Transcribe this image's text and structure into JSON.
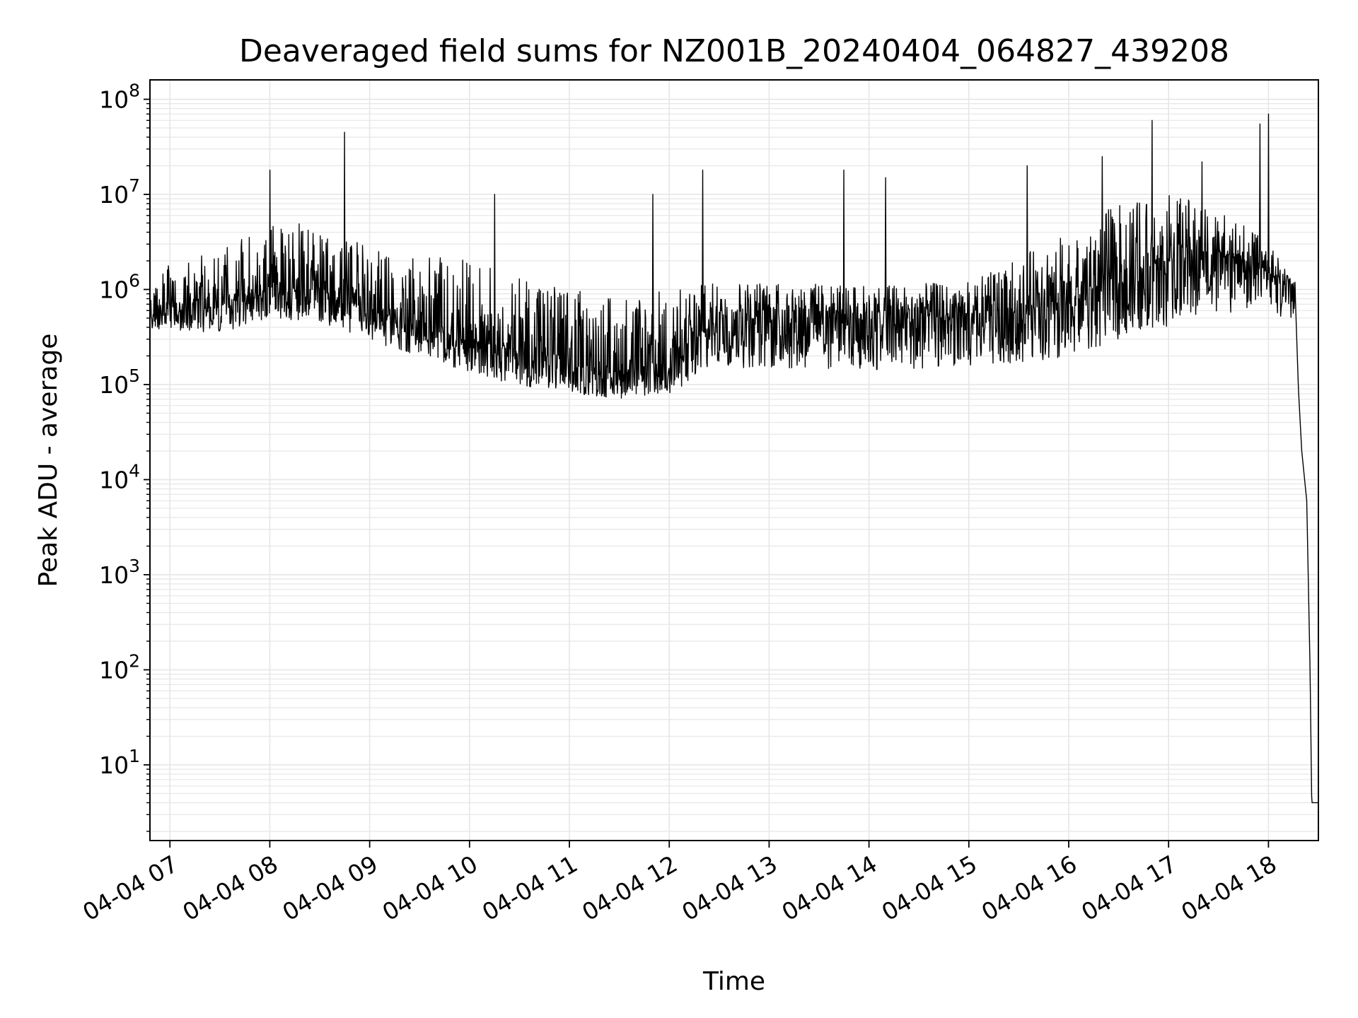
{
  "chart_data": {
    "type": "line",
    "title": "Deaveraged field sums for NZ001B_20240404_064827_439208",
    "xlabel": "Time",
    "ylabel": "Peak ADU - average",
    "yscale": "log",
    "ylim": [
      1.6,
      160000000.0
    ],
    "xlim": [
      "2024-04-04 06:48",
      "2024-04-04 18:30"
    ],
    "grid": true,
    "line_color": "#000000",
    "grid_color": "#e6e6e6",
    "x_ticks": [
      {
        "label": "04-04 07",
        "t": "2024-04-04 07:00"
      },
      {
        "label": "04-04 08",
        "t": "2024-04-04 08:00"
      },
      {
        "label": "04-04 09",
        "t": "2024-04-04 09:00"
      },
      {
        "label": "04-04 10",
        "t": "2024-04-04 10:00"
      },
      {
        "label": "04-04 11",
        "t": "2024-04-04 11:00"
      },
      {
        "label": "04-04 12",
        "t": "2024-04-04 12:00"
      },
      {
        "label": "04-04 13",
        "t": "2024-04-04 13:00"
      },
      {
        "label": "04-04 14",
        "t": "2024-04-04 14:00"
      },
      {
        "label": "04-04 15",
        "t": "2024-04-04 15:00"
      },
      {
        "label": "04-04 16",
        "t": "2024-04-04 16:00"
      },
      {
        "label": "04-04 17",
        "t": "2024-04-04 17:00"
      },
      {
        "label": "04-04 18",
        "t": "2024-04-04 18:00"
      }
    ],
    "y_ticks": [
      {
        "base": "10",
        "exp": "1",
        "value": 10
      },
      {
        "base": "10",
        "exp": "2",
        "value": 100
      },
      {
        "base": "10",
        "exp": "3",
        "value": 1000
      },
      {
        "base": "10",
        "exp": "4",
        "value": 10000
      },
      {
        "base": "10",
        "exp": "5",
        "value": 100000
      },
      {
        "base": "10",
        "exp": "6",
        "value": 1000000
      },
      {
        "base": "10",
        "exp": "7",
        "value": 10000000
      },
      {
        "base": "10",
        "exp": "8",
        "value": 100000000
      }
    ],
    "series": [
      {
        "points": [
          {
            "t": "2024-04-04 06:48",
            "baseline": 500000,
            "low": 350000,
            "high": 800000
          },
          {
            "t": "2024-04-04 07:00",
            "baseline": 650000,
            "low": 300000,
            "high": 2000000
          },
          {
            "t": "2024-04-04 07:30",
            "baseline": 700000,
            "low": 250000,
            "high": 2500000
          },
          {
            "t": "2024-04-04 08:00",
            "baseline": 900000,
            "low": 400000,
            "high": 5000000
          },
          {
            "t": "2024-04-04 08:30",
            "baseline": 1000000,
            "low": 300000,
            "high": 5000000
          },
          {
            "t": "2024-04-04 09:00",
            "baseline": 600000,
            "low": 200000,
            "high": 3000000
          },
          {
            "t": "2024-04-04 09:30",
            "baseline": 400000,
            "low": 150000,
            "high": 2500000
          },
          {
            "t": "2024-04-04 10:00",
            "baseline": 300000,
            "low": 90000,
            "high": 2000000
          },
          {
            "t": "2024-04-04 10:30",
            "baseline": 220000,
            "low": 70000,
            "high": 1500000
          },
          {
            "t": "2024-04-04 11:00",
            "baseline": 160000,
            "low": 60000,
            "high": 1000000
          },
          {
            "t": "2024-04-04 11:30",
            "baseline": 130000,
            "low": 55000,
            "high": 900000
          },
          {
            "t": "2024-04-04 12:00",
            "baseline": 160000,
            "low": 60000,
            "high": 1000000
          },
          {
            "t": "2024-04-04 12:30",
            "baseline": 500000,
            "low": 90000,
            "high": 1200000
          },
          {
            "t": "2024-04-04 13:00",
            "baseline": 600000,
            "low": 80000,
            "high": 1200000
          },
          {
            "t": "2024-04-04 14:00",
            "baseline": 550000,
            "low": 80000,
            "high": 1100000
          },
          {
            "t": "2024-04-04 15:00",
            "baseline": 500000,
            "low": 90000,
            "high": 1200000
          },
          {
            "t": "2024-04-04 16:00",
            "baseline": 700000,
            "low": 100000,
            "high": 4000000
          },
          {
            "t": "2024-04-04 16:30",
            "baseline": 1500000,
            "low": 150000,
            "high": 8000000
          },
          {
            "t": "2024-04-04 17:00",
            "baseline": 2000000,
            "low": 200000,
            "high": 10000000
          },
          {
            "t": "2024-04-04 17:30",
            "baseline": 2500000,
            "low": 300000,
            "high": 8000000
          },
          {
            "t": "2024-04-04 18:00",
            "baseline": 1500000,
            "low": 400000,
            "high": 3000000
          },
          {
            "t": "2024-04-04 18:16",
            "baseline": 1000000,
            "low": 300000,
            "high": 1200000
          },
          {
            "t": "2024-04-04 18:18",
            "baseline": 90000,
            "low": 90000,
            "high": 90000
          },
          {
            "t": "2024-04-04 18:20",
            "baseline": 20000,
            "low": 10000,
            "high": 30000
          },
          {
            "t": "2024-04-04 18:23",
            "baseline": 6000,
            "low": 6000,
            "high": 6000
          },
          {
            "t": "2024-04-04 18:25",
            "baseline": 100,
            "low": 100,
            "high": 100
          },
          {
            "t": "2024-04-04 18:26",
            "baseline": 4,
            "low": 4,
            "high": 4
          },
          {
            "t": "2024-04-04 18:30",
            "baseline": 4,
            "low": 4,
            "high": 4
          }
        ],
        "spikes": [
          {
            "t": "2024-04-04 08:00",
            "value": 18000000
          },
          {
            "t": "2024-04-04 08:45",
            "value": 45000000
          },
          {
            "t": "2024-04-04 10:15",
            "value": 10000000
          },
          {
            "t": "2024-04-04 11:50",
            "value": 10000000
          },
          {
            "t": "2024-04-04 12:20",
            "value": 18000000
          },
          {
            "t": "2024-04-04 13:45",
            "value": 18000000
          },
          {
            "t": "2024-04-04 14:10",
            "value": 15000000
          },
          {
            "t": "2024-04-04 15:35",
            "value": 20000000
          },
          {
            "t": "2024-04-04 16:20",
            "value": 25000000
          },
          {
            "t": "2024-04-04 16:50",
            "value": 60000000
          },
          {
            "t": "2024-04-04 17:20",
            "value": 22000000
          },
          {
            "t": "2024-04-04 17:55",
            "value": 55000000
          },
          {
            "t": "2024-04-04 18:00",
            "value": 70000000
          }
        ]
      }
    ]
  }
}
